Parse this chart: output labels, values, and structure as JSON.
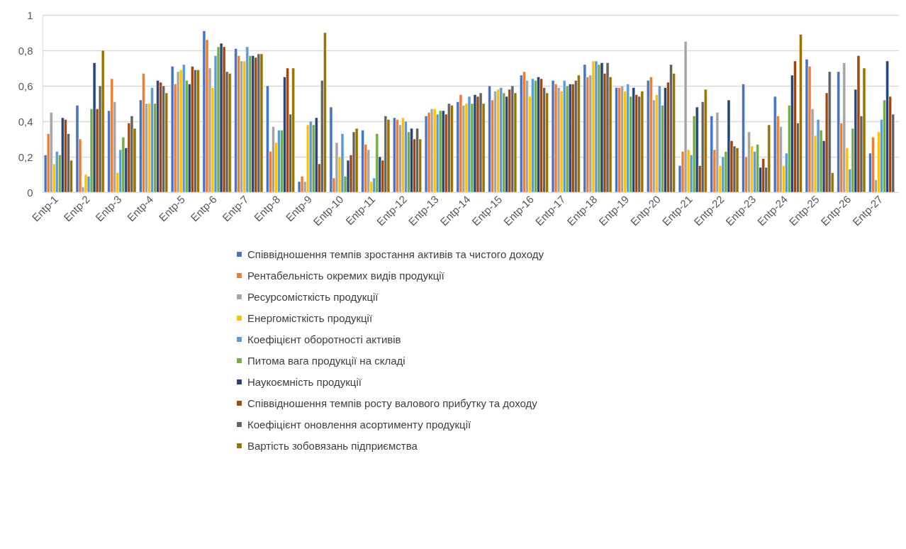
{
  "chart_data": {
    "type": "bar",
    "categories": [
      "Entp-1",
      "Entp-2",
      "Entp-3",
      "Entp-4",
      "Entp-5",
      "Entp-6",
      "Entp-7",
      "Entp-8",
      "Entp-9",
      "Entp-10",
      "Entp-11",
      "Entp-12",
      "Entp-13",
      "Entp-14",
      "Entp-15",
      "Entp-16",
      "Entp-17",
      "Entp-18",
      "Entp-19",
      "Entp-20",
      "Entp-21",
      "Entp-22",
      "Entp-23",
      "Entp-24",
      "Entp-25",
      "Entp-26",
      "Entp-27"
    ],
    "series": [
      {
        "name": "Співвідношення темпів зростання активів та чистого доходу",
        "color": "#4472c4",
        "values": [
          0.21,
          0.49,
          0.46,
          0.52,
          0.71,
          0.91,
          0.81,
          0.6,
          0.06,
          0.48,
          0.35,
          0.42,
          0.43,
          0.51,
          0.6,
          0.66,
          0.63,
          0.72,
          0.59,
          0.63,
          0.15,
          0.43,
          0.61,
          0.54,
          0.75,
          0.68,
          0.22
        ]
      },
      {
        "name": "Рентабельність окремих видів продукції",
        "color": "#ed7d31",
        "values": [
          0.33,
          0.3,
          0.64,
          0.67,
          0.61,
          0.86,
          0.77,
          0.23,
          0.09,
          0.08,
          0.27,
          0.41,
          0.45,
          0.55,
          0.52,
          0.68,
          0.61,
          0.65,
          0.59,
          0.65,
          0.23,
          0.24,
          0.2,
          0.43,
          0.71,
          0.39,
          0.31
        ]
      },
      {
        "name": "Ресурсомісткість продукції",
        "color": "#a5a5a5",
        "values": [
          0.45,
          0.03,
          0.51,
          0.5,
          0.68,
          0.7,
          0.74,
          0.37,
          0.06,
          0.28,
          0.24,
          0.38,
          0.47,
          0.49,
          0.57,
          0.63,
          0.59,
          0.66,
          0.6,
          0.52,
          0.85,
          0.45,
          0.34,
          0.37,
          0.47,
          0.73,
          0.07
        ]
      },
      {
        "name": "Енергомісткість продукції",
        "color": "#ffc000",
        "values": [
          0.16,
          0.1,
          0.11,
          0.5,
          0.69,
          0.59,
          0.74,
          0.28,
          0.38,
          0.2,
          0.06,
          0.42,
          0.47,
          0.5,
          0.58,
          0.54,
          0.57,
          0.74,
          0.57,
          0.55,
          0.24,
          0.15,
          0.26,
          0.15,
          0.32,
          0.25,
          0.34
        ]
      },
      {
        "name": "Коефіцієнт оборотності активів",
        "color": "#5b9bd5",
        "values": [
          0.23,
          0.09,
          0.24,
          0.59,
          0.72,
          0.77,
          0.82,
          0.35,
          0.4,
          0.33,
          0.08,
          0.4,
          0.44,
          0.54,
          0.59,
          0.64,
          0.63,
          0.74,
          0.61,
          0.6,
          0.21,
          0.2,
          0.23,
          0.22,
          0.41,
          0.13,
          0.41
        ]
      },
      {
        "name": "Питома вага продукції на складі",
        "color": "#70ad47",
        "values": [
          0.21,
          0.47,
          0.31,
          0.5,
          0.63,
          0.82,
          0.77,
          0.35,
          0.38,
          0.09,
          0.33,
          0.34,
          0.46,
          0.5,
          0.56,
          0.63,
          0.6,
          0.72,
          0.54,
          0.49,
          0.43,
          0.23,
          0.27,
          0.49,
          0.35,
          0.36,
          0.52
        ]
      },
      {
        "name": "Наукоємність продукції",
        "color": "#264478",
        "values": [
          0.42,
          0.73,
          0.25,
          0.63,
          0.61,
          0.84,
          0.77,
          0.65,
          0.42,
          0.18,
          0.2,
          0.36,
          0.46,
          0.55,
          0.54,
          0.65,
          0.61,
          0.73,
          0.59,
          0.59,
          0.48,
          0.52,
          0.14,
          0.66,
          0.29,
          0.58,
          0.74
        ]
      },
      {
        "name": "Співвідношення темпів росту валового прибутку та доходу",
        "color": "#9e480e",
        "values": [
          0.41,
          0.47,
          0.39,
          0.62,
          0.71,
          0.82,
          0.76,
          0.7,
          0.16,
          0.21,
          0.18,
          0.3,
          0.44,
          0.54,
          0.58,
          0.64,
          0.61,
          0.67,
          0.55,
          0.62,
          0.15,
          0.29,
          0.19,
          0.74,
          0.56,
          0.77,
          0.54
        ]
      },
      {
        "name": "Коефіцієнт оновлення асортименту продукції",
        "color": "#636363",
        "values": [
          0.33,
          0.6,
          0.43,
          0.6,
          0.69,
          0.68,
          0.78,
          0.44,
          0.63,
          0.34,
          0.43,
          0.36,
          0.5,
          0.56,
          0.6,
          0.59,
          0.63,
          0.73,
          0.54,
          0.72,
          0.51,
          0.26,
          0.14,
          0.39,
          0.68,
          0.43,
          0.44
        ]
      },
      {
        "name": "Вартість зобовязань підприємства",
        "color": "#997300",
        "values": [
          0.18,
          0.8,
          0.36,
          0.56,
          0.69,
          0.67,
          0.78,
          0.7,
          0.9,
          0.36,
          0.41,
          0.3,
          0.49,
          0.5,
          0.56,
          0.56,
          0.66,
          0.65,
          0.57,
          0.67,
          0.58,
          0.25,
          0.38,
          0.89,
          0.11,
          0.7,
          null
        ]
      }
    ],
    "ylim": [
      0,
      1
    ],
    "yticks": [
      0,
      {
        "value": 0.2,
        "label": "0,2"
      },
      {
        "value": 0.4,
        "label": "0,4"
      },
      {
        "value": 0.6,
        "label": "0,6"
      },
      {
        "value": 0.8,
        "label": "0,8"
      },
      1
    ],
    "grid": "y",
    "legend": "bottom"
  }
}
